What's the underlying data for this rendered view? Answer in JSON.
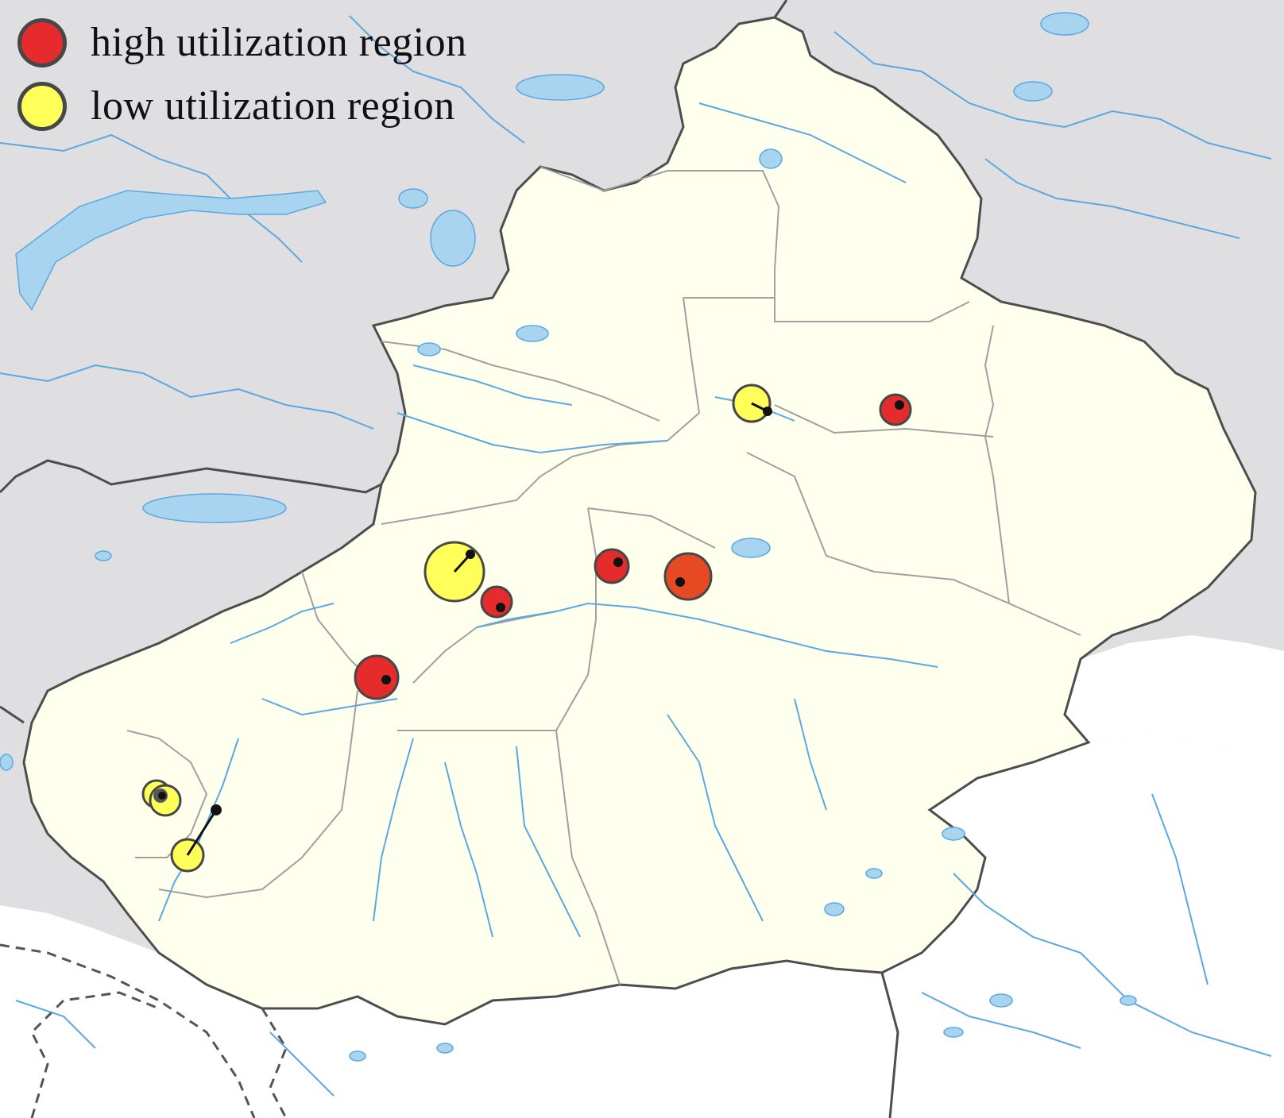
{
  "legend": {
    "items": [
      {
        "label": "high utilization region",
        "category": "high",
        "color": "#e52b2b"
      },
      {
        "label": "low utilization region",
        "category": "low",
        "color": "#ffff5a"
      }
    ]
  },
  "colors": {
    "background_land": "#dfdfe1",
    "focus_region": "#ffffee",
    "neighbor_south": "#ffffff",
    "water": "#a8d4f0",
    "river": "#5aa8e0",
    "border": "#4d4d4d",
    "internal_border": "#9a9a9a",
    "high": "#e52b2b",
    "high_alt": "#e54a22",
    "low": "#ffff5a"
  },
  "markers": [
    {
      "id": "north-low",
      "category": "low",
      "size": "medium"
    },
    {
      "id": "north-east-high",
      "category": "high",
      "size": "small"
    },
    {
      "id": "central-large-low",
      "category": "low",
      "size": "large"
    },
    {
      "id": "central-high-1",
      "category": "high",
      "size": "small"
    },
    {
      "id": "central-high-2",
      "category": "high",
      "size": "small"
    },
    {
      "id": "central-high-3",
      "category": "high",
      "size": "medium",
      "shade": "alt"
    },
    {
      "id": "south-west-high",
      "category": "high",
      "size": "medium"
    },
    {
      "id": "south-west-low-cluster",
      "category": "low",
      "size": "small"
    },
    {
      "id": "south-west-low-2",
      "category": "low",
      "size": "small"
    }
  ]
}
